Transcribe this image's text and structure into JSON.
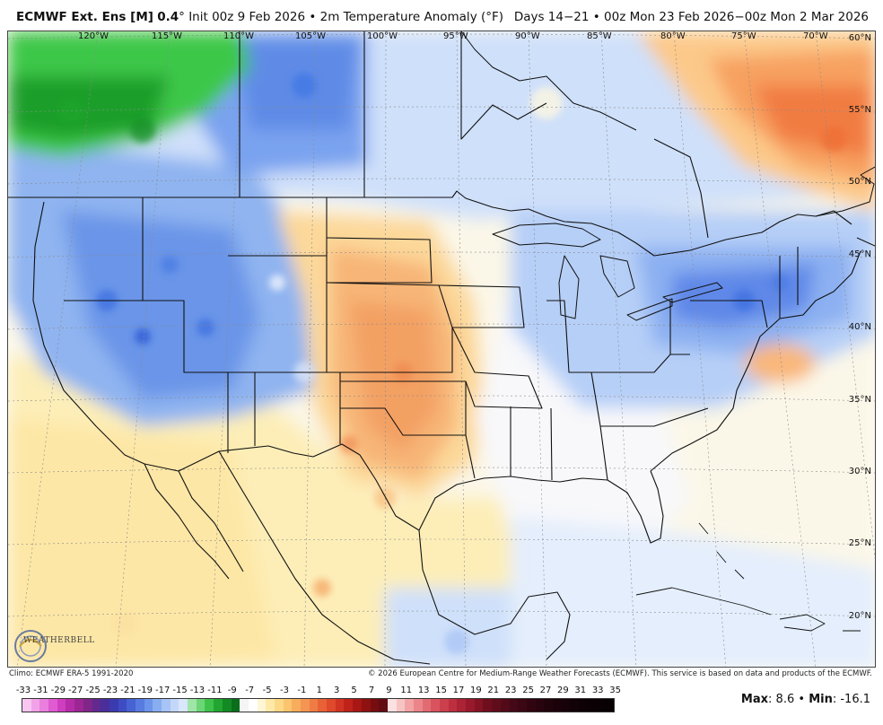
{
  "header": {
    "model": "ECMWF Ext. Ens [M]",
    "resolution": "0.4",
    "degree_symbol": "°",
    "init": "Init 00z 9 Feb 2026",
    "bullet": "•",
    "variable": "2m Temperature Anomaly (°F)",
    "days": "Days 14−21",
    "valid": "00z Mon 23 Feb 2026−00z Mon 2 Mar 2026"
  },
  "map": {
    "longitude_labels": [
      "120°W",
      "115°W",
      "110°W",
      "105°W",
      "100°W",
      "95°W",
      "90°W",
      "85°W",
      "80°W",
      "75°W",
      "70°W"
    ],
    "latitude_labels": [
      "60°N",
      "55°N",
      "50°N",
      "45°N",
      "40°N",
      "35°N",
      "30°N",
      "25°N",
      "20°N"
    ]
  },
  "logo": {
    "text": "WEATHERBELL"
  },
  "footer": {
    "climo": "Climo: ECMWF ERA-5 1991-2020",
    "copyright": "© 2026 European Centre for Medium-Range Weather Forecasts (ECMWF). This service is based on data and products of the ECMWF."
  },
  "legend": {
    "labels": [
      "-33",
      "-31",
      "-29",
      "-27",
      "-25",
      "-23",
      "-21",
      "-19",
      "-17",
      "-15",
      "-13",
      "-11",
      "-9",
      "-7",
      "-5",
      "-3",
      "-1",
      "1",
      "3",
      "5",
      "7",
      "9",
      "11",
      "13",
      "15",
      "17",
      "19",
      "21",
      "23",
      "25",
      "27",
      "29",
      "31",
      "33",
      "35"
    ],
    "colors": [
      "#f7b3ef",
      "#f08be3",
      "#e461d6",
      "#d63fc6",
      "#b82aa9",
      "#962b96",
      "#7a2a8c",
      "#5a2d8f",
      "#3a2c95",
      "#3433a8",
      "#3a47c4",
      "#4a5fd6",
      "#5d79e3",
      "#7493ea",
      "#8faaf0",
      "#a9c1f5",
      "#c2d6f8",
      "#8fe29a",
      "#58d464",
      "#2cc03d",
      "#18a229",
      "#0e8a22",
      "#f5f5f5",
      "#fff2c2",
      "#fde49b",
      "#fcd17a",
      "#f9b865",
      "#f59a55",
      "#f07b3f",
      "#e95a2b",
      "#dc3a1e",
      "#c82016",
      "#ad1513",
      "#8e0f10",
      "#6e0a0c",
      "#5a0a16",
      "#fbd3d3",
      "#f5aaaa",
      "#ef8a8c",
      "#e66a70",
      "#db5a62",
      "#cf4a53",
      "#c23b47",
      "#b4303c",
      "#a52632",
      "#941d2a",
      "#831623",
      "#73101d",
      "#660e1c",
      "#5c0c1a",
      "#520a18",
      "#470816",
      "#3d0614",
      "#340512",
      "#2c0410",
      "#25030e",
      "#20030d",
      "#1b020b",
      "#170209",
      "#130208",
      "#100207",
      "#0d0106",
      "#0a0105",
      "#080104",
      "#060103",
      "#050102",
      "#040101",
      "#030101",
      "#020101",
      "#010101"
    ],
    "bar_colors": [
      "#f9c6f2",
      "#f2a3e8",
      "#ea7fdd",
      "#df5bd1",
      "#cf3ec0",
      "#b72ca8",
      "#9c2694",
      "#7f2688",
      "#62298f",
      "#4a2e9c",
      "#3b3aae",
      "#3d4cc3",
      "#4762d3",
      "#577be0",
      "#6c94ea",
      "#88adf1",
      "#a7c4f6",
      "#c3d8f9",
      "#d9e6fb",
      "#9fe6a6",
      "#6cd677",
      "#3fc24c",
      "#22a631",
      "#138a24",
      "#0b6e1c",
      "#f5f5f5",
      "#ffffff",
      "#fff6d5",
      "#fee9a8",
      "#fdd886",
      "#fbc46d",
      "#f8ad5d",
      "#f49553",
      "#ef7c45",
      "#e96237",
      "#df492c",
      "#d13322",
      "#bf221a",
      "#a81714",
      "#8f1111",
      "#770d0f",
      "#620b12",
      "#fbe1e1",
      "#f7c4c4",
      "#f2a3a5",
      "#eb8589",
      "#e26b72",
      "#d8535e",
      "#cc3f4d",
      "#bd2f3f",
      "#ab2334",
      "#98192b",
      "#841323",
      "#710e1d",
      "#600c1b",
      "#520a18",
      "#450816",
      "#3a0713",
      "#300510",
      "#28040e",
      "#21030c",
      "#1b020a",
      "#160208",
      "#120207",
      "#0e0106",
      "#0b0105",
      "#090104",
      "#070103"
    ],
    "stats": {
      "max_label": "Max",
      "max_value": "8.6",
      "min_label": "Min",
      "min_value": "-16.1"
    }
  }
}
